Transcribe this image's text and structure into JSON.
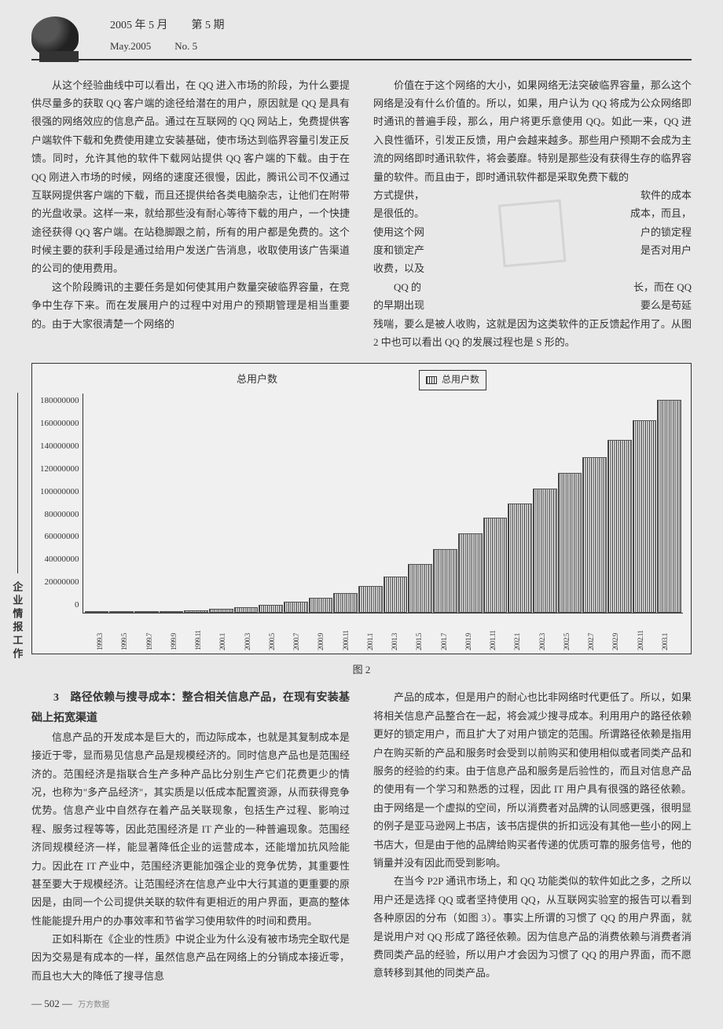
{
  "header": {
    "date_cn": "2005 年 5 月",
    "issue_cn": "第 5 期",
    "date_en": "May.2005",
    "issue_en": "No. 5"
  },
  "sidebar": "企业情报工作",
  "body": {
    "top_left_p1": "从这个经验曲线中可以看出，在 QQ 进入市场的阶段，为什么要提供尽量多的获取 QQ 客户端的途径给潜在的用户，原因就是 QQ 是具有很强的网络效应的信息产品。通过在互联网的 QQ 网站上，免费提供客户端软件下载和免费使用建立安装基础，使市场达到临界容量引发正反馈。同时，允许其他的软件下载网站提供 QQ 客户端的下载。由于在 QQ 刚进入市场的时候，网络的速度还很慢，因此，腾讯公司不仅通过互联网提供客户端的下载，而且还提供给各类电脑杂志，让他们在附带的光盘收录。这样一来，就给那些没有耐心等待下载的用户，一个快捷途径获得 QQ 客户端。在站稳脚跟之前，所有的用户都是免费的。这个时候主要的获利手段是通过给用户发送广告消息，收取使用该广告渠道的公司的使用费用。",
    "top_left_p2": "这个阶段腾讯的主要任务是如何使其用户数量突破临界容量，在竞争中生存下来。而在发展用户的过程中对用户的预期管理是相当重要的。由于大家很清楚一个网络的",
    "top_right_p1": "价值在于这个网络的大小，如果网络无法突破临界容量，那么这个网络是没有什么价值的。所以，如果，用户认为 QQ 将成为公众网络即时通讯的普遍手段，那么，用户将更乐意使用 QQ。如此一来，QQ 进入良性循环，引发正反馈，用户会越来越多。那些用户预期不会成为主流的网络即时通讯软件，将会萎靡。特别是那些没有获得生存的临界容量的软件。而且由于，即时通讯软件都是采取免费下载的",
    "top_right_frag": {
      "l1a": "方式提供，",
      "l1b": "软件的成本",
      "l2a": "是很低的。",
      "l2b": "成本，而且，",
      "l3a": "使用这个网",
      "l3b": "户的锁定程",
      "l4a": "度和锁定产",
      "l4b": "是否对用户",
      "l5a": "收费，以及",
      "l5b": "",
      "l6a": "QQ 的",
      "l6b": "长，而在 QQ",
      "l7a": "的早期出现",
      "l7b": "要么是苟延"
    },
    "top_right_p2": "残喘，要么是被人收购，这就是因为这类软件的正反馈起作用了。从图 2 中也可以看出 QQ 的发展过程也是 S 形的。",
    "section3_title": "3　路径依赖与搜寻成本：整合相关信息产品，在现有安装基础上拓宽渠道",
    "bottom_left_p1": "信息产品的开发成本是巨大的，而边际成本，也就是其复制成本是接近于零，显而易见信息产品是规模经济的。同时信息产品也是范围经济的。范围经济是指联合生产多种产品比分别生产它们花费更少的情况，也称为\"多产品经济\"，其实质是以低成本配置资源，从而获得竞争优势。信息产业中自然存在着产品关联现象，包括生产过程、影响过程、服务过程等等，因此范围经济是 IT 产业的一种普遍现象。范围经济同规模经济一样，能显著降低企业的运营成本，还能增加抗风险能力。因此在 IT 产业中，范围经济更能加强企业的竞争优势，其重要性甚至要大于规模经济。让范围经济在信息产业中大行其道的更重要的原因是，由同一个公司提供关联的软件有更相近的用户界面，更高的整体性能能提升用户的办事效率和节省学习使用软件的时间和费用。",
    "bottom_left_p2": "正如科斯在《企业的性质》中说企业为什么没有被市场完全取代是因为交易是有成本的一样，虽然信息产品在网络上的分销成本接近零，而且也大大的降低了搜寻信息",
    "bottom_right_p1": "产品的成本，但是用户的耐心也比非网络时代更低了。所以，如果将相关信息产品整合在一起，将会减少搜寻成本。利用用户的路径依赖更好的锁定用户，而且扩大了对用户锁定的范围。所谓路径依赖是指用户在购买新的产品和服务时会受到以前购买和使用相似或者同类产品和服务的经验的约束。由于信息产品和服务是后验性的，而且对信息产品的使用有一个学习和熟悉的过程，因此 IT 用户具有很强的路径依赖。由于网络是一个虚拟的空间，所以消费者对品牌的认同感更强，很明显的例子是亚马逊网上书店，该书店提供的折扣远没有其他一些小的网上书店大，但是由于他的品牌给购买者传递的优质可靠的服务信号，他的销量并没有因此而受到影响。",
    "bottom_right_p2": "在当今 P2P 通讯市场上，和 QQ 功能类似的软件如此之多，之所以用户还是选择 QQ 或者坚持使用 QQ，从互联网实验室的报告可以看到各种原因的分布（如图 3）。事实上所谓的习惯了 QQ 的用户界面，就是说用户对 QQ 形成了路径依赖。因为信息产品的消费依赖与消费者消费同类产品的经验，所以用户才会因为习惯了 QQ 的用户界面，而不愿意转移到其他的同类产品。"
  },
  "chart": {
    "title": "总用户数",
    "legend": "总用户数",
    "caption": "图 2",
    "y_ticks": [
      "180000000",
      "160000000",
      "140000000",
      "120000000",
      "100000000",
      "80000000",
      "60000000",
      "40000000",
      "20000000",
      "0"
    ],
    "y_max": 180000000,
    "x_labels": [
      "1999.3",
      "1999.5",
      "1999.7",
      "1999.9",
      "1999.11",
      "2000.1",
      "2000.3",
      "2000.5",
      "2000.7",
      "2000.9",
      "2000.11",
      "2001.1",
      "2001.3",
      "2001.5",
      "2001.7",
      "2001.9",
      "2001.11",
      "2002.1",
      "2002.3",
      "2002.5",
      "2002.7",
      "2002.9",
      "2002.11",
      "2003.1"
    ],
    "values": [
      200000,
      500000,
      900000,
      1300000,
      2000000,
      3000000,
      4500000,
      6500000,
      9000000,
      12000000,
      16000000,
      22000000,
      30000000,
      40000000,
      52000000,
      65000000,
      78000000,
      90000000,
      102000000,
      115000000,
      128000000,
      142000000,
      158000000,
      175000000
    ],
    "bar_fill": "repeating-linear-gradient(90deg, #333 0 1px, transparent 1px 2.5px)",
    "border_color": "#333",
    "background": "#f0f0f0"
  },
  "footer": {
    "page": "— 502 —",
    "watermark_small": "万方数据"
  }
}
